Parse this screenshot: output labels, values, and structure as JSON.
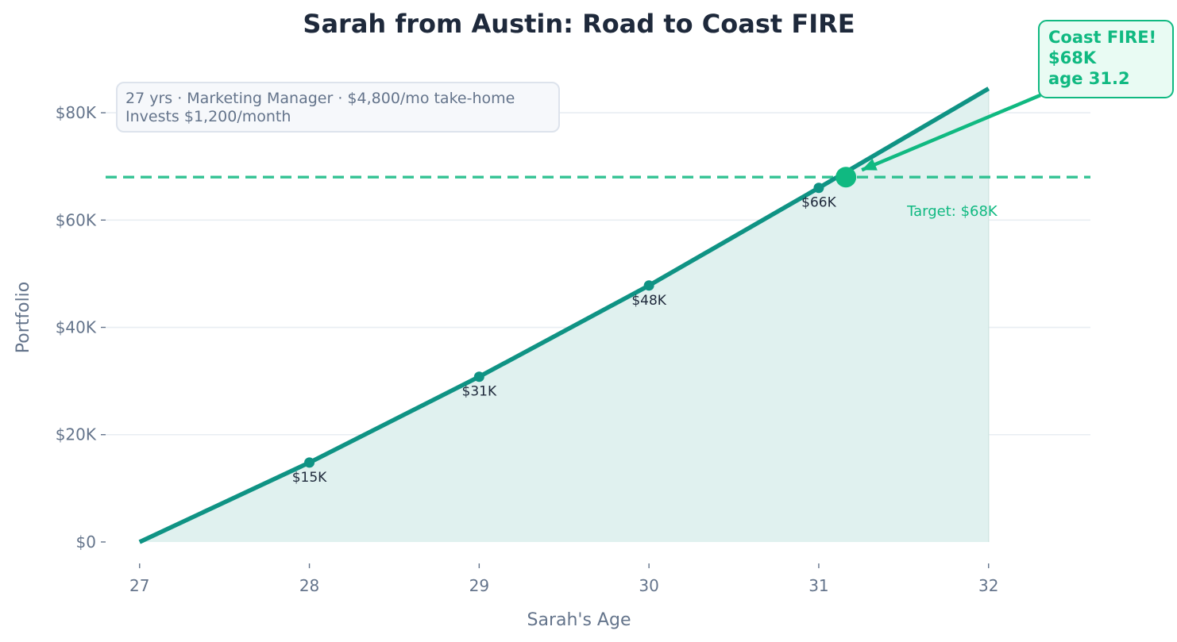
{
  "chart_data": {
    "type": "area",
    "title": "Sarah from Austin: Road to Coast FIRE",
    "xlabel": "Sarah's Age",
    "ylabel": "Portfolio",
    "xlim": [
      26.8,
      32.6
    ],
    "ylim": [
      -4000,
      88000
    ],
    "x_ticks": [
      27,
      28,
      29,
      30,
      31,
      32
    ],
    "x_tick_labels": [
      "27",
      "28",
      "29",
      "30",
      "31",
      "32"
    ],
    "y_ticks": [
      0,
      20000,
      40000,
      60000,
      80000
    ],
    "y_tick_labels": [
      "$0",
      "$20K",
      "$40K",
      "$60K",
      "$80K"
    ],
    "grid": "horizontal",
    "series": [
      {
        "x": [
          27,
          28,
          29,
          30,
          31,
          32
        ],
        "values": [
          0,
          14800,
          30800,
          47800,
          66000,
          84500
        ]
      }
    ],
    "milestones": [
      {
        "x": 28,
        "y": 14800,
        "label": "$15K"
      },
      {
        "x": 29,
        "y": 30800,
        "label": "$31K"
      },
      {
        "x": 30,
        "y": 47800,
        "label": "$48K"
      },
      {
        "x": 31,
        "y": 66000,
        "label": "$66K"
      }
    ],
    "target": {
      "value": 68000,
      "label": "Target: $68K"
    },
    "crossing": {
      "x": 31.16,
      "y": 68000
    },
    "callout": {
      "lines": [
        "Coast FIRE!",
        "$68K",
        "age 31.2"
      ]
    },
    "info_box": {
      "lines": [
        "27 yrs · Marketing Manager · $4,800/mo take-home",
        "Invests $1,200/month"
      ]
    },
    "colors": {
      "line": "#0f9384",
      "fill": "#e0f1ef",
      "target": "#10b981",
      "title": "#1e293b",
      "axis_text": "#64748b",
      "grid": "#e8edf2",
      "info_bg": "#f6f8fb",
      "info_border": "#dde3ec",
      "callout_bg": "#e9fbf3"
    }
  }
}
